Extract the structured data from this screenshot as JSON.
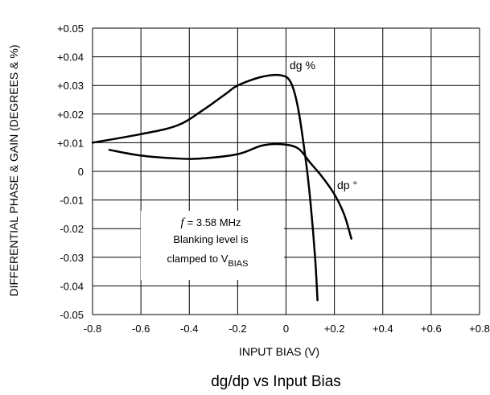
{
  "chart_data": {
    "type": "line",
    "title": "dg/dp vs Input Bias",
    "xlabel": "INPUT BIAS (V)",
    "ylabel": "DIFFERENTIAL PHASE & GAIN (DEGREES & %)",
    "xlim": [
      -0.8,
      0.8
    ],
    "ylim": [
      -0.05,
      0.05
    ],
    "x_ticks": [
      "-0.8",
      "-0.6",
      "-0.4",
      "-0.2",
      "0",
      "+0.2",
      "+0.4",
      "+0.6",
      "+0.8"
    ],
    "y_ticks": [
      "+0.05",
      "+0.04",
      "+0.03",
      "+0.02",
      "+0.01",
      "0",
      "-0.01",
      "-0.02",
      "-0.03",
      "-0.04",
      "-0.05"
    ],
    "grid": true,
    "series": [
      {
        "name": "dg %",
        "x": [
          -0.8,
          -0.6,
          -0.45,
          -0.35,
          -0.25,
          -0.2,
          -0.1,
          -0.02,
          0.02,
          0.05,
          0.08,
          0.1,
          0.12,
          0.13
        ],
        "y": [
          0.01,
          0.013,
          0.016,
          0.021,
          0.027,
          0.03,
          0.033,
          0.0335,
          0.031,
          0.022,
          0.005,
          -0.01,
          -0.03,
          -0.045
        ]
      },
      {
        "name": "dp °",
        "x": [
          -0.73,
          -0.6,
          -0.45,
          -0.35,
          -0.2,
          -0.1,
          -0.02,
          0.05,
          0.1,
          0.15,
          0.2,
          0.24,
          0.27
        ],
        "y": [
          0.0075,
          0.0055,
          0.0045,
          0.0045,
          0.006,
          0.009,
          0.0095,
          0.008,
          0.003,
          -0.002,
          -0.008,
          -0.015,
          -0.0235
        ]
      }
    ],
    "annotation": {
      "line1": "= 3.58 MHz",
      "line1_symbol": "f",
      "line2": "Blanking level is",
      "line3": "clamped to V",
      "line3_sub": "BIAS"
    }
  }
}
